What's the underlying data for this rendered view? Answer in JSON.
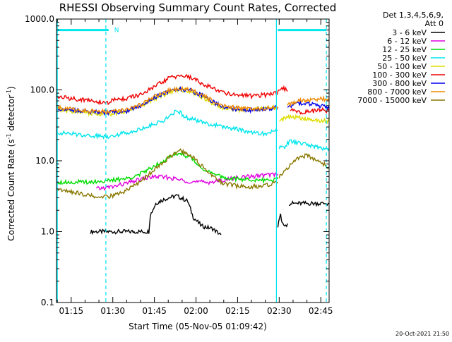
{
  "chart_data": {
    "type": "line",
    "title": "RHESSI Observing Summary Count Rates, Corrected",
    "xlabel": "Start Time (05-Nov-05 01:09:42)",
    "ylabel_parts": [
      "Corrected Count Rate (s",
      "-1",
      " detector",
      "-1",
      ")"
    ],
    "yscale": "log",
    "ylim": [
      0.1,
      1000
    ],
    "xlim_minutes": [
      69.7,
      168
    ],
    "y_ticks": [
      {
        "value": 0.1,
        "label": "0.1"
      },
      {
        "value": 1,
        "label": "1.0"
      },
      {
        "value": 10,
        "label": "10.0"
      },
      {
        "value": 100,
        "label": "100.0"
      },
      {
        "value": 1000,
        "label": "1000.0"
      }
    ],
    "x_ticks": [
      {
        "minutes": 75,
        "label": "01:15"
      },
      {
        "minutes": 90,
        "label": "01:30"
      },
      {
        "minutes": 105,
        "label": "01:45"
      },
      {
        "minutes": 120,
        "label": "02:00"
      },
      {
        "minutes": 135,
        "label": "02:15"
      },
      {
        "minutes": 150,
        "label": "02:30"
      },
      {
        "minutes": 165,
        "label": "02:45"
      }
    ],
    "legend_header": [
      "Det 1,3,4,5,6,9,",
      "Att 0"
    ],
    "legend_position": "right",
    "night_lines": [
      {
        "minutes": 70,
        "style": "solid"
      },
      {
        "minutes": 87.5,
        "style": "dashed"
      },
      {
        "minutes": 149,
        "style": "solid"
      },
      {
        "minutes": 167,
        "style": "dashed"
      }
    ],
    "flag_marker": {
      "label": "N",
      "minutes": 89
    },
    "flag_bars": [
      {
        "start": 70,
        "end": 88.5
      },
      {
        "start": 149.5,
        "end": 167
      }
    ],
    "flag_level": 700,
    "series": [
      {
        "name": "3 - 6 keV",
        "color": "#000000",
        "segments": [
          [
            [
              82,
              1
            ],
            [
              103,
              1
            ],
            [
              103.5,
              1.7
            ],
            [
              105.5,
              2.5
            ],
            [
              108,
              2.8
            ],
            [
              110,
              3
            ],
            [
              113,
              3.2
            ],
            [
              117,
              2.7
            ],
            [
              119,
              1.6
            ],
            [
              122,
              1.2
            ],
            [
              126,
              1.1
            ],
            [
              129,
              0.9
            ]
          ],
          [
            [
              149.5,
              1.2
            ],
            [
              150.5,
              1.8
            ],
            [
              151,
              1.3
            ],
            [
              152,
              1.2
            ],
            [
              153,
              1.3
            ]
          ],
          [
            [
              153.5,
              2.5
            ],
            [
              168,
              2.5
            ]
          ]
        ]
      },
      {
        "name": "6 - 12 keV",
        "color": "#e000e0",
        "segments": [
          [
            [
              84,
              4
            ],
            [
              90,
              4.3
            ],
            [
              95,
              4.8
            ],
            [
              100,
              5.5
            ],
            [
              105,
              6
            ],
            [
              110,
              5.8
            ],
            [
              115,
              5.3
            ],
            [
              120,
              5
            ],
            [
              125,
              5
            ],
            [
              130,
              5.3
            ],
            [
              135,
              5.8
            ],
            [
              140,
              6
            ],
            [
              145,
              6.3
            ],
            [
              149.5,
              6.5
            ]
          ]
        ]
      },
      {
        "name": "12 - 25 keV",
        "color": "#00dd00",
        "segments": [
          [
            [
              70,
              5
            ],
            [
              80,
              5
            ],
            [
              88,
              5.2
            ],
            [
              95,
              5.6
            ],
            [
              100,
              6.5
            ],
            [
              105,
              8.5
            ],
            [
              110,
              11
            ],
            [
              114,
              13
            ],
            [
              118,
              11
            ],
            [
              122,
              8
            ],
            [
              126,
              6.5
            ],
            [
              130,
              5.8
            ],
            [
              135,
              5.5
            ],
            [
              140,
              5.4
            ],
            [
              145,
              5.3
            ],
            [
              149.5,
              5.5
            ]
          ]
        ]
      },
      {
        "name": "25 - 50 keV",
        "color": "#00e5ee",
        "segments": [
          [
            [
              70,
              25
            ],
            [
              80,
              23
            ],
            [
              88,
              22
            ],
            [
              95,
              25
            ],
            [
              100,
              28
            ],
            [
              105,
              33
            ],
            [
              110,
              40
            ],
            [
              113,
              52
            ],
            [
              116,
              42
            ],
            [
              120,
              37
            ],
            [
              125,
              33
            ],
            [
              130,
              30
            ],
            [
              135,
              28
            ],
            [
              140,
              25
            ],
            [
              145,
              24
            ],
            [
              149.5,
              27
            ]
          ],
          [
            [
              150,
              15
            ],
            [
              152,
              16
            ],
            [
              154,
              19
            ],
            [
              156,
              18
            ],
            [
              160,
              17
            ],
            [
              165,
              15
            ],
            [
              168,
              15
            ]
          ]
        ]
      },
      {
        "name": "50 - 100 keV",
        "color": "#dddd00",
        "segments": [
          [
            [
              70,
              52
            ],
            [
              80,
              48
            ],
            [
              88,
              45
            ],
            [
              95,
              50
            ],
            [
              100,
              60
            ],
            [
              105,
              75
            ],
            [
              110,
              90
            ],
            [
              114,
              100
            ],
            [
              118,
              95
            ],
            [
              122,
              80
            ],
            [
              126,
              65
            ],
            [
              130,
              55
            ],
            [
              135,
              52
            ],
            [
              140,
              52
            ],
            [
              145,
              55
            ],
            [
              149.5,
              57
            ]
          ],
          [
            [
              150,
              38
            ],
            [
              155,
              42
            ],
            [
              160,
              38
            ],
            [
              165,
              37
            ],
            [
              168,
              36
            ]
          ]
        ]
      },
      {
        "name": "100 - 300 keV",
        "color": "#ee0000",
        "segments": [
          [
            [
              70,
              80
            ],
            [
              80,
              72
            ],
            [
              88,
              65
            ],
            [
              90,
              72
            ],
            [
              95,
              76
            ],
            [
              100,
              85
            ],
            [
              105,
              110
            ],
            [
              110,
              145
            ],
            [
              114,
              160
            ],
            [
              118,
              150
            ],
            [
              122,
              125
            ],
            [
              126,
              105
            ],
            [
              130,
              92
            ],
            [
              135,
              85
            ],
            [
              140,
              82
            ],
            [
              145,
              85
            ],
            [
              149,
              90
            ],
            [
              151,
              110
            ],
            [
              153,
              95
            ]
          ],
          [
            [
              154,
              52
            ],
            [
              158,
              48
            ],
            [
              162,
              50
            ],
            [
              166,
              52
            ],
            [
              168,
              50
            ]
          ]
        ]
      },
      {
        "name": "300 - 800 keV",
        "color": "#0000ee",
        "segments": [
          [
            [
              70,
              55
            ],
            [
              80,
              50
            ],
            [
              88,
              48
            ],
            [
              95,
              50
            ],
            [
              100,
              60
            ],
            [
              105,
              78
            ],
            [
              110,
              95
            ],
            [
              114,
              102
            ],
            [
              118,
              98
            ],
            [
              122,
              85
            ],
            [
              126,
              68
            ],
            [
              130,
              58
            ],
            [
              135,
              53
            ],
            [
              140,
              52
            ],
            [
              145,
              54
            ],
            [
              149.5,
              57
            ]
          ],
          [
            [
              153,
              58
            ],
            [
              157,
              65
            ],
            [
              162,
              62
            ],
            [
              166,
              58
            ],
            [
              168,
              55
            ]
          ]
        ]
      },
      {
        "name": "800 - 7000 keV",
        "color": "#ee8800",
        "segments": [
          [
            [
              70,
              56
            ],
            [
              80,
              51
            ],
            [
              88,
              49
            ],
            [
              95,
              52
            ],
            [
              100,
              62
            ],
            [
              105,
              80
            ],
            [
              110,
              97
            ],
            [
              114,
              104
            ],
            [
              118,
              100
            ],
            [
              122,
              86
            ],
            [
              126,
              70
            ],
            [
              130,
              60
            ],
            [
              135,
              55
            ],
            [
              140,
              53
            ],
            [
              145,
              55
            ],
            [
              149.5,
              58
            ]
          ],
          [
            [
              153,
              60
            ],
            [
              157,
              70
            ],
            [
              162,
              72
            ],
            [
              166,
              75
            ],
            [
              168,
              70
            ]
          ]
        ]
      },
      {
        "name": "7000 - 15000 keV",
        "color": "#887700",
        "segments": [
          [
            [
              70,
              4
            ],
            [
              78,
              3.5
            ],
            [
              85,
              3
            ],
            [
              90,
              3.2
            ],
            [
              95,
              3.8
            ],
            [
              100,
              5
            ],
            [
              105,
              7.5
            ],
            [
              110,
              11
            ],
            [
              114,
              14
            ],
            [
              118,
              12
            ],
            [
              122,
              8.5
            ],
            [
              126,
              6
            ],
            [
              130,
              4.8
            ],
            [
              135,
              4.4
            ],
            [
              140,
              4.3
            ],
            [
              145,
              4.5
            ],
            [
              149.5,
              5
            ]
          ],
          [
            [
              150,
              6
            ],
            [
              153,
              8
            ],
            [
              157,
              11
            ],
            [
              160,
              12
            ],
            [
              164,
              10
            ],
            [
              168,
              8
            ]
          ]
        ]
      }
    ]
  },
  "footer_stamp": "20-Oct-2021 21:50"
}
